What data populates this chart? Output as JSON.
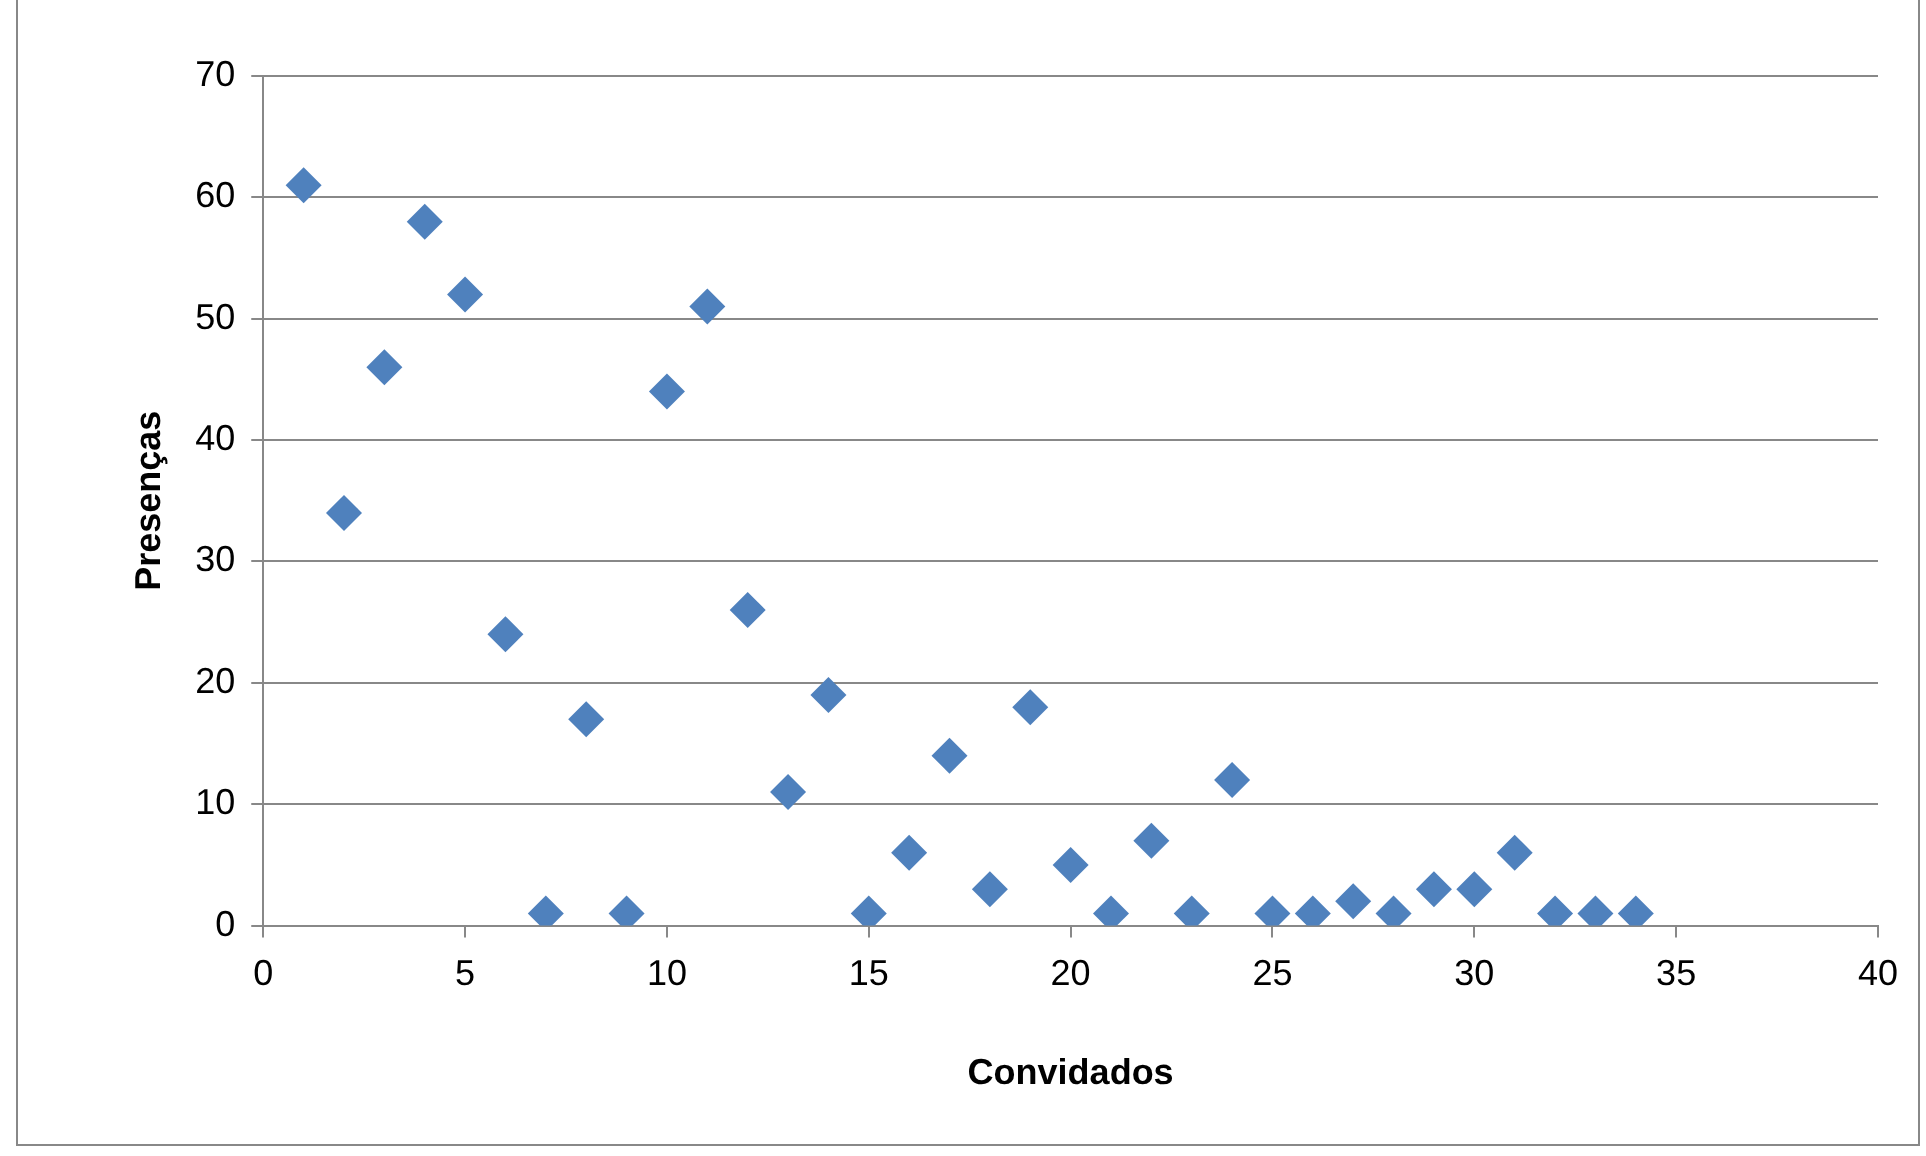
{
  "chart_data": {
    "type": "scatter",
    "xlabel": "Convidados",
    "ylabel": "Presenças",
    "x": [
      1,
      2,
      3,
      4,
      5,
      6,
      7,
      8,
      9,
      10,
      11,
      12,
      13,
      14,
      15,
      16,
      17,
      18,
      19,
      20,
      21,
      22,
      23,
      24,
      25,
      26,
      27,
      28,
      29,
      30,
      31,
      32,
      33,
      34
    ],
    "series": [
      {
        "color": "#4f81bd",
        "values": [
          61,
          34,
          46,
          58,
          52,
          24,
          1,
          17,
          1,
          44,
          51,
          26,
          11,
          19,
          1,
          6,
          14,
          3,
          18,
          5,
          1,
          7,
          1,
          12,
          1,
          1,
          2,
          1,
          3,
          3,
          6,
          1,
          1,
          1
        ]
      }
    ],
    "xlim": [
      0,
      40
    ],
    "xticks": [
      0,
      5,
      10,
      15,
      20,
      25,
      30,
      35,
      40
    ],
    "ylim": [
      0,
      70
    ],
    "yticks": [
      0,
      10,
      20,
      30,
      40,
      50,
      60,
      70
    ],
    "grid": "y",
    "legend": false,
    "marker": "diamond"
  }
}
